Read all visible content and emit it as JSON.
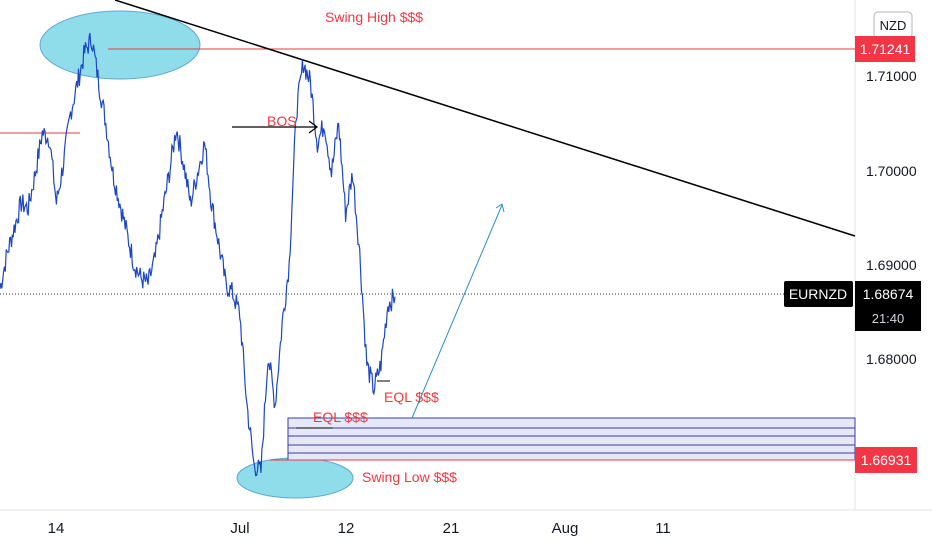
{
  "chart_data": {
    "type": "candlestick",
    "symbol": "EURNZD",
    "currency": "NZD",
    "last_price": "1.68674",
    "countdown": "21:40",
    "x_ticks": [
      "14",
      "Jul",
      "12",
      "21",
      "Aug",
      "11"
    ],
    "y_ticks": [
      "1.71000",
      "1.70000",
      "1.69000",
      "1.68000"
    ],
    "ylim": [
      1.6655,
      1.7162
    ],
    "levels": [
      {
        "label": "Swing High $$$",
        "price": 1.71241,
        "color": "#f23645"
      },
      {
        "label": "Swing Low $$$",
        "price": 1.66931,
        "color": "#f23645"
      }
    ],
    "annotations": [
      "BOS",
      "EQL $$$",
      "EQL $$$"
    ],
    "price_series_approx": [
      1.6875,
      1.691,
      1.6935,
      1.696,
      1.6955,
      1.699,
      1.703,
      1.7025,
      1.696,
      1.7,
      1.705,
      1.708,
      1.711,
      1.7124,
      1.708,
      1.704,
      1.699,
      1.696,
      1.693,
      1.69,
      1.6885,
      1.688,
      1.6905,
      1.695,
      1.699,
      1.7035,
      1.7,
      1.696,
      1.699,
      1.702,
      1.696,
      1.692,
      1.688,
      1.687,
      1.685,
      1.676,
      1.67,
      1.6693,
      1.681,
      1.676,
      1.684,
      1.69,
      1.705,
      1.71,
      1.708,
      1.702,
      1.704,
      1.699,
      1.704,
      1.695,
      1.699,
      1.691,
      1.68,
      1.6775,
      1.68,
      1.686,
      1.6867
    ],
    "colors": {
      "price_line": "#1c45c8",
      "level": "#f23645",
      "zone": "#e6e7f8",
      "zone_border": "#3a3f9e",
      "highlight": "#8fdcea",
      "trend": "#000000",
      "projection": "#2a8fbd"
    }
  }
}
